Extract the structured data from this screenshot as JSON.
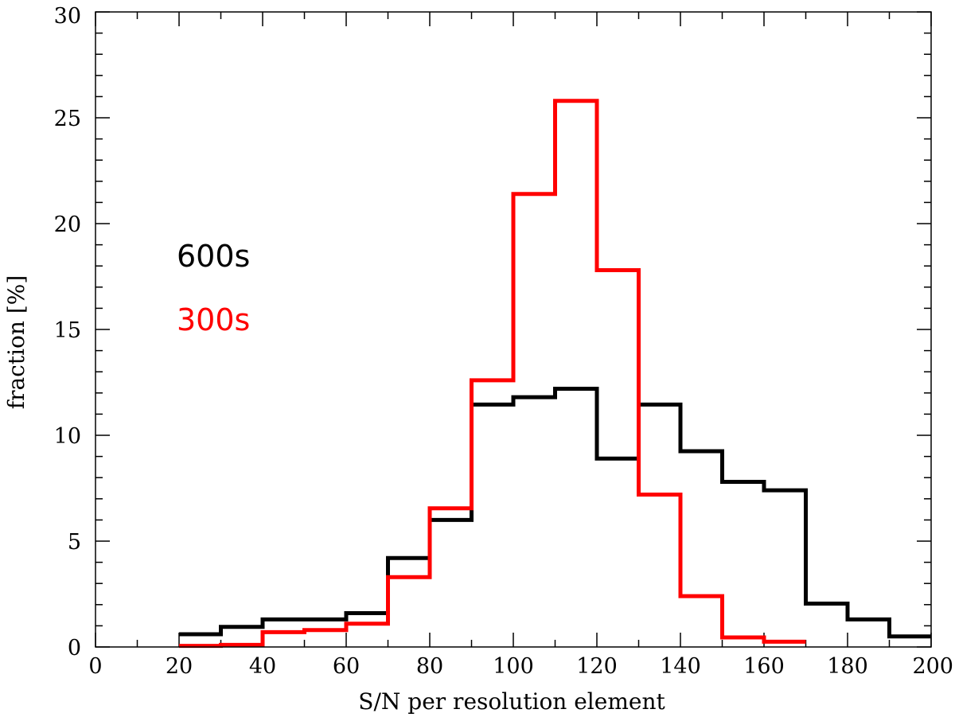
{
  "chart_data": {
    "type": "histogram",
    "title": "",
    "xlabel": "S/N per resolution element",
    "ylabel": "fraction [%]",
    "xlim": [
      0,
      200
    ],
    "ylim": [
      0,
      30
    ],
    "x_ticks": [
      0,
      20,
      40,
      60,
      80,
      100,
      120,
      140,
      160,
      180,
      200
    ],
    "y_ticks": [
      0,
      5,
      10,
      15,
      20,
      25,
      30
    ],
    "x_minor_step": 10,
    "y_minor_step": 1,
    "grid": false,
    "legend_placement": "middle-left",
    "bin_edges": [
      20,
      30,
      40,
      50,
      60,
      70,
      80,
      90,
      100,
      110,
      120,
      130,
      140,
      150,
      160,
      170,
      180,
      190,
      200
    ],
    "series": [
      {
        "name": "600s",
        "color": "#000000",
        "values": [
          0.6,
          0.95,
          1.3,
          1.3,
          1.6,
          4.2,
          6.0,
          11.45,
          11.8,
          12.2,
          8.9,
          11.45,
          9.25,
          7.8,
          7.4,
          2.05,
          1.3,
          0.5
        ]
      },
      {
        "name": "300s",
        "color": "#ff0000",
        "values": [
          0.05,
          0.1,
          0.7,
          0.8,
          1.1,
          3.3,
          6.55,
          12.6,
          21.4,
          25.8,
          17.8,
          7.2,
          2.4,
          0.45,
          0.25,
          null,
          null,
          null
        ]
      }
    ]
  }
}
